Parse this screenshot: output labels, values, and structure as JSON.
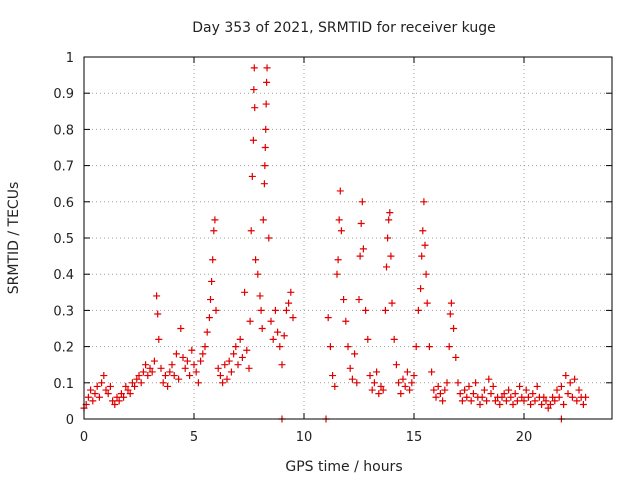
{
  "chart_data": {
    "type": "scatter",
    "title": "Day 353 of 2021, SRMTID for receiver kuge",
    "xlabel": "GPS time / hours",
    "ylabel": "SRMTID / TECUs",
    "xlim": [
      0,
      24
    ],
    "ylim": [
      0,
      1
    ],
    "xticks": [
      0,
      5,
      10,
      15,
      20
    ],
    "yticks": [
      0,
      0.1,
      0.2,
      0.3,
      0.4,
      0.5,
      0.6,
      0.7,
      0.8,
      0.9,
      1
    ],
    "xtick_labels": [
      "0",
      "5",
      "10",
      "15",
      "20"
    ],
    "ytick_labels": [
      "0",
      "0.1",
      "0.2",
      "0.3",
      "0.4",
      "0.5",
      "0.6",
      "0.7",
      "0.8",
      "0.9",
      "1"
    ],
    "grid": true,
    "marker": "+",
    "color": "#e00000",
    "series": [
      {
        "name": "SRMTID",
        "points": [
          [
            0.0,
            0.03
          ],
          [
            0.1,
            0.04
          ],
          [
            0.2,
            0.06
          ],
          [
            0.3,
            0.08
          ],
          [
            0.4,
            0.05
          ],
          [
            0.5,
            0.07
          ],
          [
            0.6,
            0.09
          ],
          [
            0.7,
            0.06
          ],
          [
            0.8,
            0.1
          ],
          [
            0.9,
            0.12
          ],
          [
            1.0,
            0.08
          ],
          [
            1.1,
            0.07
          ],
          [
            1.2,
            0.09
          ],
          [
            1.3,
            0.05
          ],
          [
            1.4,
            0.04
          ],
          [
            1.5,
            0.06
          ],
          [
            1.6,
            0.05
          ],
          [
            1.7,
            0.07
          ],
          [
            1.8,
            0.06
          ],
          [
            1.9,
            0.09
          ],
          [
            2.0,
            0.08
          ],
          [
            2.1,
            0.07
          ],
          [
            2.2,
            0.1
          ],
          [
            2.3,
            0.09
          ],
          [
            2.4,
            0.11
          ],
          [
            2.5,
            0.12
          ],
          [
            2.6,
            0.1
          ],
          [
            2.7,
            0.13
          ],
          [
            2.8,
            0.15
          ],
          [
            2.9,
            0.12
          ],
          [
            3.0,
            0.14
          ],
          [
            3.1,
            0.13
          ],
          [
            3.2,
            0.16
          ],
          [
            3.3,
            0.34
          ],
          [
            3.35,
            0.29
          ],
          [
            3.4,
            0.22
          ],
          [
            3.5,
            0.14
          ],
          [
            3.6,
            0.1
          ],
          [
            3.7,
            0.12
          ],
          [
            3.8,
            0.09
          ],
          [
            3.9,
            0.13
          ],
          [
            4.0,
            0.15
          ],
          [
            4.1,
            0.12
          ],
          [
            4.2,
            0.18
          ],
          [
            4.3,
            0.11
          ],
          [
            4.4,
            0.25
          ],
          [
            4.5,
            0.17
          ],
          [
            4.6,
            0.14
          ],
          [
            4.7,
            0.16
          ],
          [
            4.8,
            0.12
          ],
          [
            4.9,
            0.19
          ],
          [
            5.0,
            0.15
          ],
          [
            5.1,
            0.13
          ],
          [
            5.2,
            0.1
          ],
          [
            5.3,
            0.16
          ],
          [
            5.4,
            0.18
          ],
          [
            5.5,
            0.2
          ],
          [
            5.6,
            0.24
          ],
          [
            5.7,
            0.28
          ],
          [
            5.75,
            0.33
          ],
          [
            5.8,
            0.38
          ],
          [
            5.85,
            0.44
          ],
          [
            5.9,
            0.52
          ],
          [
            5.95,
            0.55
          ],
          [
            6.0,
            0.3
          ],
          [
            6.1,
            0.14
          ],
          [
            6.2,
            0.12
          ],
          [
            6.3,
            0.1
          ],
          [
            6.4,
            0.15
          ],
          [
            6.5,
            0.11
          ],
          [
            6.6,
            0.16
          ],
          [
            6.7,
            0.13
          ],
          [
            6.8,
            0.18
          ],
          [
            6.9,
            0.2
          ],
          [
            7.0,
            0.15
          ],
          [
            7.1,
            0.22
          ],
          [
            7.2,
            0.17
          ],
          [
            7.3,
            0.35
          ],
          [
            7.4,
            0.19
          ],
          [
            7.5,
            0.14
          ],
          [
            7.55,
            0.27
          ],
          [
            7.6,
            0.52
          ],
          [
            7.65,
            0.67
          ],
          [
            7.7,
            0.77
          ],
          [
            7.72,
            0.91
          ],
          [
            7.74,
            0.97
          ],
          [
            7.76,
            0.86
          ],
          [
            7.8,
            0.44
          ],
          [
            7.9,
            0.4
          ],
          [
            8.0,
            0.34
          ],
          [
            8.05,
            0.3
          ],
          [
            8.1,
            0.25
          ],
          [
            8.15,
            0.55
          ],
          [
            8.2,
            0.65
          ],
          [
            8.22,
            0.7
          ],
          [
            8.24,
            0.75
          ],
          [
            8.26,
            0.8
          ],
          [
            8.28,
            0.87
          ],
          [
            8.3,
            0.93
          ],
          [
            8.32,
            0.97
          ],
          [
            8.4,
            0.5
          ],
          [
            8.5,
            0.27
          ],
          [
            8.6,
            0.22
          ],
          [
            8.7,
            0.3
          ],
          [
            8.8,
            0.24
          ],
          [
            8.9,
            0.2
          ],
          [
            9.0,
            0.15
          ],
          [
            9.1,
            0.23
          ],
          [
            9.2,
            0.3
          ],
          [
            9.3,
            0.32
          ],
          [
            9.4,
            0.35
          ],
          [
            9.5,
            0.28
          ],
          [
            9.0,
            0.0
          ],
          [
            11.0,
            0.0
          ],
          [
            11.1,
            0.28
          ],
          [
            11.2,
            0.2
          ],
          [
            11.3,
            0.12
          ],
          [
            11.4,
            0.09
          ],
          [
            11.5,
            0.4
          ],
          [
            11.55,
            0.44
          ],
          [
            11.6,
            0.55
          ],
          [
            11.65,
            0.63
          ],
          [
            11.7,
            0.52
          ],
          [
            11.8,
            0.33
          ],
          [
            11.9,
            0.27
          ],
          [
            12.0,
            0.2
          ],
          [
            12.1,
            0.14
          ],
          [
            12.2,
            0.11
          ],
          [
            12.3,
            0.18
          ],
          [
            12.4,
            0.1
          ],
          [
            12.5,
            0.33
          ],
          [
            12.55,
            0.45
          ],
          [
            12.6,
            0.54
          ],
          [
            12.65,
            0.6
          ],
          [
            12.7,
            0.47
          ],
          [
            12.8,
            0.3
          ],
          [
            12.9,
            0.22
          ],
          [
            13.0,
            0.12
          ],
          [
            13.1,
            0.08
          ],
          [
            13.2,
            0.1
          ],
          [
            13.3,
            0.13
          ],
          [
            13.4,
            0.07
          ],
          [
            13.5,
            0.09
          ],
          [
            13.6,
            0.08
          ],
          [
            13.7,
            0.3
          ],
          [
            13.75,
            0.42
          ],
          [
            13.8,
            0.5
          ],
          [
            13.85,
            0.55
          ],
          [
            13.9,
            0.57
          ],
          [
            13.95,
            0.45
          ],
          [
            14.0,
            0.32
          ],
          [
            14.1,
            0.22
          ],
          [
            14.2,
            0.15
          ],
          [
            14.3,
            0.1
          ],
          [
            14.4,
            0.07
          ],
          [
            14.5,
            0.11
          ],
          [
            14.6,
            0.09
          ],
          [
            14.7,
            0.13
          ],
          [
            14.8,
            0.08
          ],
          [
            14.9,
            0.1
          ],
          [
            15.0,
            0.12
          ],
          [
            15.1,
            0.2
          ],
          [
            15.2,
            0.3
          ],
          [
            15.3,
            0.36
          ],
          [
            15.35,
            0.45
          ],
          [
            15.4,
            0.52
          ],
          [
            15.45,
            0.6
          ],
          [
            15.5,
            0.48
          ],
          [
            15.55,
            0.4
          ],
          [
            15.6,
            0.32
          ],
          [
            15.7,
            0.2
          ],
          [
            15.8,
            0.13
          ],
          [
            15.9,
            0.08
          ],
          [
            16.0,
            0.06
          ],
          [
            16.1,
            0.09
          ],
          [
            16.2,
            0.07
          ],
          [
            16.3,
            0.05
          ],
          [
            16.4,
            0.08
          ],
          [
            16.5,
            0.1
          ],
          [
            16.6,
            0.2
          ],
          [
            16.65,
            0.29
          ],
          [
            16.7,
            0.32
          ],
          [
            16.8,
            0.25
          ],
          [
            16.9,
            0.17
          ],
          [
            17.0,
            0.1
          ],
          [
            17.1,
            0.07
          ],
          [
            17.2,
            0.05
          ],
          [
            17.3,
            0.08
          ],
          [
            17.4,
            0.06
          ],
          [
            17.5,
            0.09
          ],
          [
            17.6,
            0.05
          ],
          [
            17.7,
            0.07
          ],
          [
            17.8,
            0.1
          ],
          [
            17.9,
            0.06
          ],
          [
            18.0,
            0.04
          ],
          [
            18.1,
            0.06
          ],
          [
            18.2,
            0.08
          ],
          [
            18.3,
            0.05
          ],
          [
            18.4,
            0.11
          ],
          [
            18.5,
            0.07
          ],
          [
            18.6,
            0.09
          ],
          [
            18.7,
            0.05
          ],
          [
            18.8,
            0.06
          ],
          [
            18.9,
            0.04
          ],
          [
            19.0,
            0.06
          ],
          [
            19.1,
            0.07
          ],
          [
            19.2,
            0.05
          ],
          [
            19.3,
            0.08
          ],
          [
            19.4,
            0.06
          ],
          [
            19.5,
            0.04
          ],
          [
            19.6,
            0.07
          ],
          [
            19.7,
            0.05
          ],
          [
            19.8,
            0.09
          ],
          [
            19.9,
            0.06
          ],
          [
            20.0,
            0.05
          ],
          [
            20.1,
            0.08
          ],
          [
            20.2,
            0.06
          ],
          [
            20.3,
            0.04
          ],
          [
            20.4,
            0.07
          ],
          [
            20.5,
            0.05
          ],
          [
            20.6,
            0.09
          ],
          [
            20.7,
            0.06
          ],
          [
            20.8,
            0.04
          ],
          [
            20.9,
            0.06
          ],
          [
            21.0,
            0.05
          ],
          [
            21.1,
            0.03
          ],
          [
            21.2,
            0.04
          ],
          [
            21.3,
            0.06
          ],
          [
            21.4,
            0.05
          ],
          [
            21.5,
            0.08
          ],
          [
            21.6,
            0.06
          ],
          [
            21.7,
            0.09
          ],
          [
            21.8,
            0.04
          ],
          [
            21.9,
            0.12
          ],
          [
            22.0,
            0.07
          ],
          [
            22.1,
            0.1
          ],
          [
            22.2,
            0.06
          ],
          [
            22.3,
            0.11
          ],
          [
            22.4,
            0.05
          ],
          [
            22.5,
            0.08
          ],
          [
            22.6,
            0.06
          ],
          [
            22.7,
            0.04
          ],
          [
            22.8,
            0.06
          ],
          [
            21.7,
            0.0
          ]
        ]
      }
    ]
  }
}
